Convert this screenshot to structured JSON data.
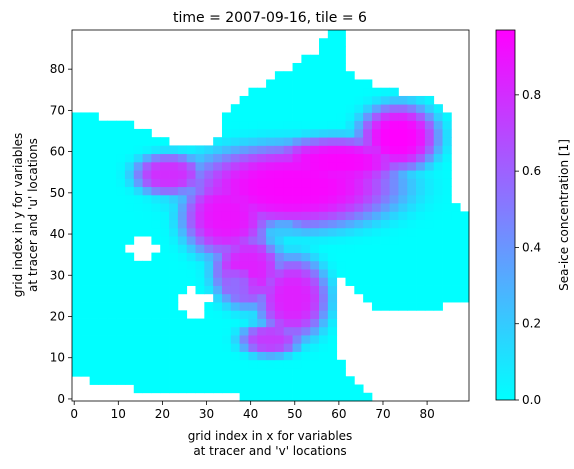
{
  "chart_data": {
    "type": "heatmap",
    "title": "time = 2007-09-16, tile = 6",
    "xlabel": [
      "grid index in x for variables",
      "at tracer and 'v' locations"
    ],
    "ylabel": [
      "grid index in y for variables",
      "at tracer and 'u' locations"
    ],
    "colorbar_label": "Sea-ice concentration [1]",
    "colormap": "cool",
    "colormap_colors": [
      "#00ffff",
      "#ff00ff"
    ],
    "missing_color": "#ffffff",
    "xlim": [
      0,
      89
    ],
    "ylim": [
      0,
      89
    ],
    "clim": [
      0,
      0.97
    ],
    "xticks": [
      0,
      10,
      20,
      30,
      40,
      50,
      60,
      70,
      80
    ],
    "yticks": [
      0,
      10,
      20,
      30,
      40,
      50,
      60,
      70,
      80
    ],
    "cbar_ticks": [
      0.0,
      0.2,
      0.4,
      0.6,
      0.8
    ],
    "cbar_tick_labels": [
      "0.0",
      "0.2",
      "0.4",
      "0.6",
      "0.8"
    ],
    "xtick_labels": [
      "0",
      "10",
      "20",
      "30",
      "40",
      "50",
      "60",
      "70",
      "80"
    ],
    "ytick_labels": [
      "0",
      "10",
      "20",
      "30",
      "40",
      "50",
      "60",
      "70",
      "80"
    ],
    "field_regions": {
      "ocean_value": 0.0,
      "high_ice_blobs": [
        {
          "cx": 50,
          "cy": 52,
          "rx": 24,
          "ry": 10,
          "value": 0.95
        },
        {
          "cx": 74,
          "cy": 64,
          "rx": 9,
          "ry": 8,
          "value": 0.97
        },
        {
          "cx": 60,
          "cy": 58,
          "rx": 16,
          "ry": 6,
          "value": 0.95
        },
        {
          "cx": 35,
          "cy": 45,
          "rx": 10,
          "ry": 10,
          "value": 0.9
        },
        {
          "cx": 40,
          "cy": 32,
          "rx": 8,
          "ry": 9,
          "value": 0.85
        },
        {
          "cx": 50,
          "cy": 25,
          "rx": 8,
          "ry": 10,
          "value": 0.85
        },
        {
          "cx": 45,
          "cy": 15,
          "rx": 7,
          "ry": 4,
          "value": 0.75
        },
        {
          "cx": 22,
          "cy": 55,
          "rx": 8,
          "ry": 5,
          "value": 0.8
        }
      ],
      "low_ice_blobs": [
        {
          "cx": 48,
          "cy": 40,
          "rx": 4,
          "ry": 4,
          "value": 0.2
        },
        {
          "cx": 37,
          "cy": 28,
          "rx": 4,
          "ry": 4,
          "value": 0.55
        }
      ],
      "land_shapes": [
        [
          [
            0,
            90
          ],
          [
            0,
            70
          ],
          [
            12,
            68
          ],
          [
            24,
            62
          ],
          [
            32,
            62
          ],
          [
            36,
            72
          ],
          [
            48,
            80
          ],
          [
            56,
            85
          ],
          [
            58,
            90
          ]
        ],
        [
          [
            62,
            90
          ],
          [
            62,
            80
          ],
          [
            70,
            76
          ],
          [
            80,
            74
          ],
          [
            86,
            70
          ],
          [
            86,
            50
          ],
          [
            90,
            44
          ],
          [
            90,
            90
          ]
        ],
        [
          [
            48,
            82
          ],
          [
            54,
            90
          ],
          [
            56,
            90
          ],
          [
            52,
            82
          ]
        ],
        [
          [
            60,
            30
          ],
          [
            70,
            22
          ],
          [
            78,
            22
          ],
          [
            90,
            24
          ],
          [
            90,
            0
          ],
          [
            70,
            0
          ],
          [
            62,
            6
          ],
          [
            60,
            16
          ]
        ],
        [
          [
            0,
            0
          ],
          [
            0,
            6
          ],
          [
            8,
            4
          ],
          [
            20,
            2
          ],
          [
            36,
            2
          ],
          [
            40,
            0
          ]
        ],
        [
          [
            12,
            36
          ],
          [
            18,
            34
          ],
          [
            22,
            38
          ],
          [
            16,
            40
          ]
        ],
        [
          [
            24,
            22
          ],
          [
            30,
            20
          ],
          [
            32,
            26
          ],
          [
            26,
            28
          ]
        ]
      ]
    }
  }
}
